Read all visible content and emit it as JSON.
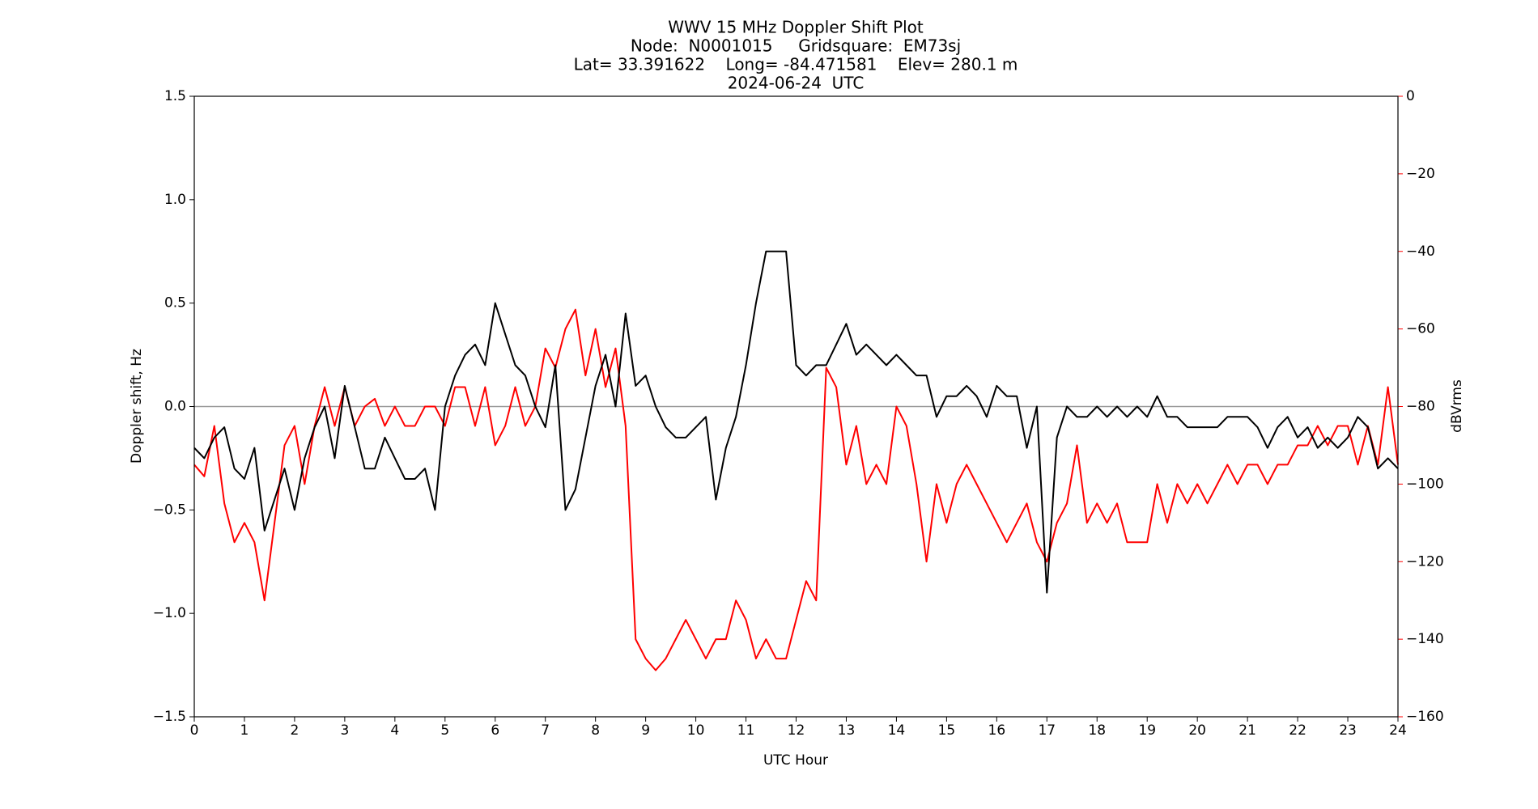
{
  "chart_data": {
    "type": "line",
    "title": "WWV 15 MHz Doppler Shift Plot",
    "subtitle": [
      "Node:  N0001015     Gridsquare:  EM73sj",
      "Lat= 33.391622    Long= -84.471581    Elev= 280.1 m",
      "2024-06-24  UTC"
    ],
    "xlabel": "UTC Hour",
    "ylabel": "Doppler shift, Hz",
    "y2label": "dBVrms",
    "y2color": "#ff0000",
    "reference_line": 0,
    "reference_color": "#999999",
    "xlim": [
      0,
      24
    ],
    "ylim": [
      -1.5,
      1.5
    ],
    "y2lim": [
      -160,
      0
    ],
    "xticks": [
      0,
      1,
      2,
      3,
      4,
      5,
      6,
      7,
      8,
      9,
      10,
      11,
      12,
      13,
      14,
      15,
      16,
      17,
      18,
      19,
      20,
      21,
      22,
      23,
      24
    ],
    "yticks": [
      {
        "value": -1.5,
        "label": "−1.5"
      },
      {
        "value": -1,
        "label": "−1.0"
      },
      {
        "value": -0.5,
        "label": "−0.5"
      },
      {
        "value": 0,
        "label": "0.0"
      },
      0.5,
      {
        "value": 1,
        "label": "1.0"
      },
      {
        "value": 1.5,
        "label": "1.5"
      }
    ],
    "y2ticks": [
      {
        "value": -160,
        "label": "−160"
      },
      {
        "value": -140,
        "label": "−140"
      },
      {
        "value": -120,
        "label": "−120"
      },
      {
        "value": -100,
        "label": "−100"
      },
      {
        "value": -80,
        "label": "−80"
      },
      {
        "value": -60,
        "label": "−60"
      },
      {
        "value": -40,
        "label": "−40"
      },
      {
        "value": -20,
        "label": "−20"
      },
      0
    ],
    "x": [
      0,
      0.2,
      0.4,
      0.6,
      0.8,
      1,
      1.2,
      1.4,
      1.6,
      1.8,
      2,
      2.2,
      2.4,
      2.6,
      2.8,
      3,
      3.2,
      3.4,
      3.6,
      3.8,
      4,
      4.2,
      4.4,
      4.6,
      4.8,
      5,
      5.2,
      5.4,
      5.6,
      5.8,
      6,
      6.2,
      6.4,
      6.6,
      6.8,
      7,
      7.2,
      7.4,
      7.6,
      7.8,
      8,
      8.2,
      8.4,
      8.6,
      8.8,
      9,
      9.2,
      9.4,
      9.6,
      9.8,
      10,
      10.2,
      10.4,
      10.6,
      10.8,
      11,
      11.2,
      11.4,
      11.6,
      11.8,
      12,
      12.2,
      12.4,
      12.6,
      12.8,
      13,
      13.2,
      13.4,
      13.6,
      13.8,
      14,
      14.2,
      14.4,
      14.6,
      14.8,
      15,
      15.2,
      15.4,
      15.6,
      15.8,
      16,
      16.2,
      16.4,
      16.6,
      16.8,
      17,
      17.2,
      17.4,
      17.6,
      17.8,
      18,
      18.2,
      18.4,
      18.6,
      18.8,
      19,
      19.2,
      19.4,
      19.6,
      19.8,
      20,
      20.2,
      20.4,
      20.6,
      20.8,
      21,
      21.2,
      21.4,
      21.6,
      21.8,
      22,
      22.2,
      22.4,
      22.6,
      22.8,
      23,
      23.2,
      23.4,
      23.6,
      23.8,
      24
    ],
    "series": [
      {
        "color": "#000000",
        "values": [
          -0.2,
          -0.25,
          -0.15,
          -0.1,
          -0.3,
          -0.35,
          -0.2,
          -0.6,
          -0.45,
          -0.3,
          -0.5,
          -0.25,
          -0.1,
          0,
          -0.25,
          0.1,
          -0.1,
          -0.3,
          -0.3,
          -0.15,
          -0.25,
          -0.35,
          -0.35,
          -0.3,
          -0.5,
          0,
          0.15,
          0.25,
          0.3,
          0.2,
          0.5,
          0.35,
          0.2,
          0.15,
          0,
          -0.1,
          0.2,
          -0.5,
          -0.4,
          -0.15,
          0.1,
          0.25,
          0,
          0.45,
          0.1,
          0.15,
          0,
          -0.1,
          -0.15,
          -0.15,
          -0.1,
          -0.05,
          -0.45,
          -0.2,
          -0.05,
          0.2,
          0.5,
          0.75,
          0.75,
          0.75,
          0.2,
          0.15,
          0.2,
          0.2,
          0.3,
          0.4,
          0.25,
          0.3,
          0.25,
          0.2,
          0.25,
          0.2,
          0.15,
          0.15,
          -0.05,
          0.05,
          0.05,
          0.1,
          0.05,
          -0.05,
          0.1,
          0.05,
          0.05,
          -0.2,
          0,
          -0.9,
          -0.15,
          0,
          -0.05,
          -0.05,
          0,
          -0.05,
          0,
          -0.05,
          0,
          -0.05,
          0.05,
          -0.05,
          -0.05,
          -0.1,
          -0.1,
          -0.1,
          -0.1,
          -0.05,
          -0.05,
          -0.05,
          -0.1,
          -0.2,
          -0.1,
          -0.05,
          -0.15,
          -0.1,
          -0.2,
          -0.15,
          -0.2,
          -0.15,
          -0.05,
          -0.1,
          -0.3,
          -0.25,
          -0.3
        ]
      },
      {
        "color": "#ff0000",
        "axis": "y2",
        "values": [
          -95,
          -98,
          -85,
          -105,
          -115,
          -110,
          -115,
          -130,
          -110,
          -90,
          -85,
          -100,
          -85,
          -75,
          -85,
          -75,
          -85,
          -80,
          -78,
          -85,
          -80,
          -85,
          -85,
          -80,
          -80,
          -85,
          -75,
          -75,
          -85,
          -75,
          -90,
          -85,
          -75,
          -85,
          -80,
          -65,
          -70,
          -60,
          -55,
          -72,
          -60,
          -75,
          -65,
          -85,
          -140,
          -145,
          -148,
          -145,
          -140,
          -135,
          -140,
          -145,
          -140,
          -140,
          -130,
          -135,
          -145,
          -140,
          -145,
          -145,
          -135,
          -125,
          -130,
          -70,
          -75,
          -95,
          -85,
          -100,
          -95,
          -100,
          -80,
          -85,
          -100,
          -120,
          -100,
          -110,
          -100,
          -95,
          -100,
          -105,
          -110,
          -115,
          -110,
          -105,
          -115,
          -120,
          -110,
          -105,
          -90,
          -110,
          -105,
          -110,
          -105,
          -115,
          -115,
          -115,
          -100,
          -110,
          -100,
          -105,
          -100,
          -105,
          -100,
          -95,
          -100,
          -95,
          -95,
          -100,
          -95,
          -95,
          -90,
          -90,
          -85,
          -90,
          -85,
          -85,
          -95,
          -85,
          -95,
          -75,
          -95
        ]
      }
    ]
  }
}
